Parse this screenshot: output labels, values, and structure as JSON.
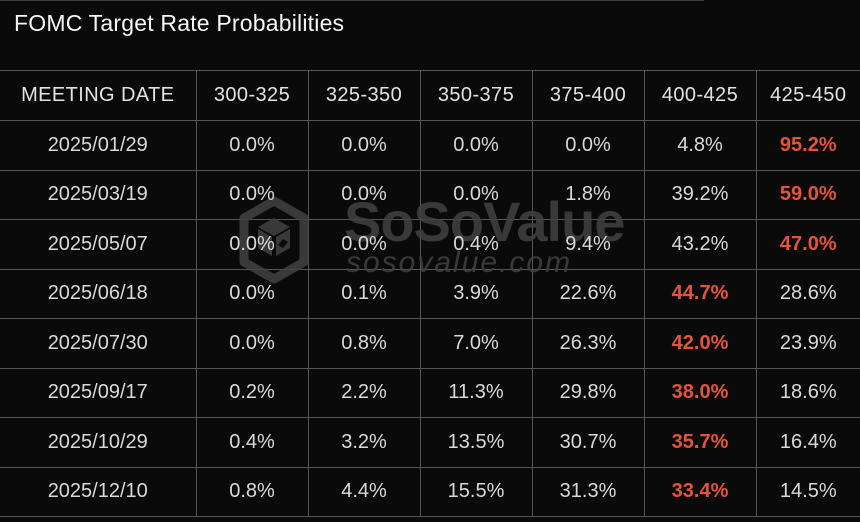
{
  "chart_data": {
    "type": "table",
    "title": "FOMC Target Rate Probabilities",
    "columns": [
      "MEETING DATE",
      "300-325",
      "325-350",
      "350-375",
      "375-400",
      "400-425",
      "425-450"
    ],
    "rows": [
      {
        "meeting_date": "2025/01/29",
        "probabilities": [
          "0.0%",
          "0.0%",
          "0.0%",
          "0.0%",
          "4.8%",
          "95.2%"
        ],
        "highlight_index": 5
      },
      {
        "meeting_date": "2025/03/19",
        "probabilities": [
          "0.0%",
          "0.0%",
          "0.0%",
          "1.8%",
          "39.2%",
          "59.0%"
        ],
        "highlight_index": 5
      },
      {
        "meeting_date": "2025/05/07",
        "probabilities": [
          "0.0%",
          "0.0%",
          "0.4%",
          "9.4%",
          "43.2%",
          "47.0%"
        ],
        "highlight_index": 5
      },
      {
        "meeting_date": "2025/06/18",
        "probabilities": [
          "0.0%",
          "0.1%",
          "3.9%",
          "22.6%",
          "44.7%",
          "28.6%"
        ],
        "highlight_index": 4
      },
      {
        "meeting_date": "2025/07/30",
        "probabilities": [
          "0.0%",
          "0.8%",
          "7.0%",
          "26.3%",
          "42.0%",
          "23.9%"
        ],
        "highlight_index": 4
      },
      {
        "meeting_date": "2025/09/17",
        "probabilities": [
          "0.2%",
          "2.2%",
          "11.3%",
          "29.8%",
          "38.0%",
          "18.6%"
        ],
        "highlight_index": 4
      },
      {
        "meeting_date": "2025/10/29",
        "probabilities": [
          "0.4%",
          "3.2%",
          "13.5%",
          "30.7%",
          "35.7%",
          "16.4%"
        ],
        "highlight_index": 4
      },
      {
        "meeting_date": "2025/12/10",
        "probabilities": [
          "0.8%",
          "4.4%",
          "15.5%",
          "31.3%",
          "33.4%",
          "14.5%"
        ],
        "highlight_index": 4
      }
    ]
  },
  "watermark": {
    "brand": "SoSoValue",
    "domain": "sosovalue.com",
    "icon": "sosovalue-cube-icon"
  },
  "colors": {
    "background": "#0a0a0a",
    "grid_line": "#565656",
    "title_text": "#f7f7f7",
    "header_text": "#e3e3e3",
    "cell_text": "#d9d9d9",
    "highlight": "#e65437",
    "watermark": "#424242"
  }
}
